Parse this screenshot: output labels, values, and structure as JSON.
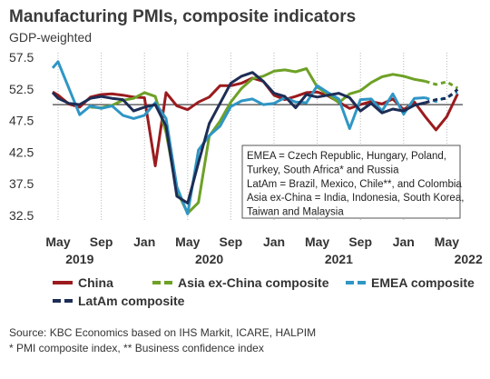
{
  "chart_data": {
    "type": "line",
    "title": "Manufacturing PMIs, composite indicators",
    "subtitle": "GDP-weighted",
    "ylim": [
      30,
      59
    ],
    "y_ticks": [
      "57.5",
      "52.5",
      "47.5",
      "42.5",
      "37.5",
      "32.5"
    ],
    "y_tick_values": [
      57.5,
      52.5,
      47.5,
      42.5,
      37.5,
      32.5
    ],
    "reference_line": 50,
    "x_start": "2019-05",
    "x_ticks": [
      {
        "month": "May",
        "year": "2019",
        "index": 0
      },
      {
        "month": "Sep",
        "year": "",
        "index": 4
      },
      {
        "month": "Jan",
        "year": "",
        "index": 8
      },
      {
        "month": "May",
        "year": "2020",
        "index": 12
      },
      {
        "month": "Sep",
        "year": "",
        "index": 16
      },
      {
        "month": "Jan",
        "year": "",
        "index": 20
      },
      {
        "month": "May",
        "year": "2021",
        "index": 24
      },
      {
        "month": "Sep",
        "year": "",
        "index": 28
      },
      {
        "month": "Jan",
        "year": "",
        "index": 32
      },
      {
        "month": "May",
        "year": "2022",
        "index": 36
      }
    ],
    "note_lines": [
      "EMEA = Czech Republic, Hungary, Poland,",
      "Turkey, South Africa* and Russia",
      "LatAm = Brazil, Mexico, Chile**, and Colombia",
      "Asia ex-China = India, Indonesia, South Korea,",
      "Taiwan and Malaysia"
    ],
    "series": [
      {
        "name": "China",
        "color": "#9b1b1e",
        "dashed_from": null,
        "points": [
          [
            -0.5,
            52
          ],
          [
            0,
            51.5
          ],
          [
            1,
            50.1
          ],
          [
            2,
            49.6
          ],
          [
            3,
            51.2
          ],
          [
            4,
            51.6
          ],
          [
            5,
            51.7
          ],
          [
            6,
            51.5
          ],
          [
            7,
            51.2
          ],
          [
            8,
            51.1
          ],
          [
            9,
            40.3
          ],
          [
            10,
            51.9
          ],
          [
            11,
            49.8
          ],
          [
            12,
            49.2
          ],
          [
            13,
            50.4
          ],
          [
            14,
            51.2
          ],
          [
            15,
            53.0
          ],
          [
            16,
            53.0
          ],
          [
            17,
            53.4
          ],
          [
            18,
            54.2
          ],
          [
            19,
            53.7
          ],
          [
            20,
            51.5
          ],
          [
            21,
            50.8
          ],
          [
            22,
            51.3
          ],
          [
            23,
            51.9
          ],
          [
            24,
            52.0
          ],
          [
            25,
            51.4
          ],
          [
            26,
            50.4
          ],
          [
            27,
            49.4
          ],
          [
            28,
            50.0
          ],
          [
            29,
            50.5
          ],
          [
            30,
            50.1
          ],
          [
            31,
            50.9
          ],
          [
            32,
            49.2
          ],
          [
            33,
            50.4
          ],
          [
            34,
            48.1
          ],
          [
            35,
            46.0
          ],
          [
            36,
            48.1
          ],
          [
            37,
            51.7
          ]
        ]
      },
      {
        "name": "Asia ex-China composite",
        "color": "#6ea126",
        "dashed_from": 34,
        "points": [
          [
            3,
            49.6
          ],
          [
            4,
            49.5
          ],
          [
            5,
            49.9
          ],
          [
            6,
            50.7
          ],
          [
            7,
            51.0
          ],
          [
            8,
            51.9
          ],
          [
            9,
            51.3
          ],
          [
            10,
            45.6
          ],
          [
            11,
            36.4
          ],
          [
            12,
            32.8
          ],
          [
            13,
            34.5
          ],
          [
            14,
            45.0
          ],
          [
            15,
            47.4
          ],
          [
            16,
            50.4
          ],
          [
            17,
            52.6
          ],
          [
            18,
            54.1
          ],
          [
            19,
            54.5
          ],
          [
            20,
            55.3
          ],
          [
            21,
            55.5
          ],
          [
            22,
            55.2
          ],
          [
            23,
            55.7
          ],
          [
            24,
            52.8
          ],
          [
            25,
            51.6
          ],
          [
            26,
            50.3
          ],
          [
            27,
            51.7
          ],
          [
            28,
            52.2
          ],
          [
            29,
            53.5
          ],
          [
            30,
            54.4
          ],
          [
            31,
            54.8
          ],
          [
            32,
            54.5
          ],
          [
            33,
            54.0
          ],
          [
            34,
            53.7
          ],
          [
            35,
            53.2
          ],
          [
            36,
            53.6
          ],
          [
            37,
            52.6
          ]
        ]
      },
      {
        "name": "EMEA composite",
        "color": "#2f96c5",
        "dashed_from": 34,
        "points": [
          [
            -0.5,
            55.8
          ],
          [
            0,
            56.8
          ],
          [
            1,
            52.6
          ],
          [
            2,
            48.4
          ],
          [
            3,
            49.8
          ],
          [
            4,
            49.4
          ],
          [
            5,
            49.8
          ],
          [
            6,
            48.3
          ],
          [
            7,
            47.8
          ],
          [
            8,
            48.3
          ],
          [
            9,
            50.3
          ],
          [
            10,
            47.8
          ],
          [
            11,
            37.0
          ],
          [
            12,
            32.7
          ],
          [
            13,
            42.8
          ],
          [
            14,
            45.1
          ],
          [
            15,
            46.6
          ],
          [
            16,
            49.7
          ],
          [
            17,
            50.6
          ],
          [
            18,
            50.9
          ],
          [
            19,
            50.0
          ],
          [
            20,
            50.2
          ],
          [
            21,
            51.1
          ],
          [
            22,
            50.4
          ],
          [
            23,
            50.3
          ],
          [
            24,
            53.0
          ],
          [
            25,
            51.9
          ],
          [
            26,
            50.9
          ],
          [
            27,
            46.2
          ],
          [
            28,
            50.8
          ],
          [
            29,
            50.9
          ],
          [
            30,
            49.0
          ],
          [
            31,
            51.7
          ],
          [
            32,
            48.5
          ],
          [
            33,
            51.0
          ],
          [
            34,
            51.1
          ],
          [
            35,
            50.5
          ],
          [
            36,
            51.2
          ],
          [
            37,
            51.9
          ]
        ]
      },
      {
        "name": "LatAm composite",
        "color": "#1d2d55",
        "dashed_from": 34,
        "points": [
          [
            -0.5,
            51.9
          ],
          [
            0,
            51.0
          ],
          [
            1,
            50.2
          ],
          [
            2,
            50.0
          ],
          [
            3,
            51.0
          ],
          [
            4,
            51.3
          ],
          [
            5,
            51.0
          ],
          [
            6,
            50.8
          ],
          [
            7,
            49.0
          ],
          [
            8,
            49.6
          ],
          [
            9,
            50.0
          ],
          [
            10,
            46.6
          ],
          [
            11,
            35.5
          ],
          [
            12,
            34.4
          ],
          [
            13,
            40.8
          ],
          [
            14,
            47.0
          ],
          [
            15,
            50.2
          ],
          [
            16,
            53.4
          ],
          [
            17,
            54.5
          ],
          [
            18,
            55.1
          ],
          [
            19,
            53.7
          ],
          [
            20,
            51.8
          ],
          [
            21,
            51.3
          ],
          [
            22,
            49.5
          ],
          [
            23,
            51.6
          ],
          [
            24,
            51.2
          ],
          [
            25,
            51.5
          ],
          [
            26,
            51.8
          ],
          [
            27,
            51.1
          ],
          [
            28,
            49.0
          ],
          [
            29,
            50.2
          ],
          [
            30,
            48.7
          ],
          [
            31,
            49.3
          ],
          [
            32,
            49.0
          ],
          [
            33,
            49.9
          ],
          [
            34,
            50.3
          ],
          [
            35,
            50.8
          ],
          [
            36,
            51.0
          ],
          [
            37,
            52.4
          ]
        ]
      }
    ],
    "legend_position": "bottom"
  },
  "footer": {
    "source_line": "Source: KBC Economics based on IHS Markit, ICARE, HALPIM",
    "note_line": "* PMI composite index, ** Business confidence index"
  }
}
